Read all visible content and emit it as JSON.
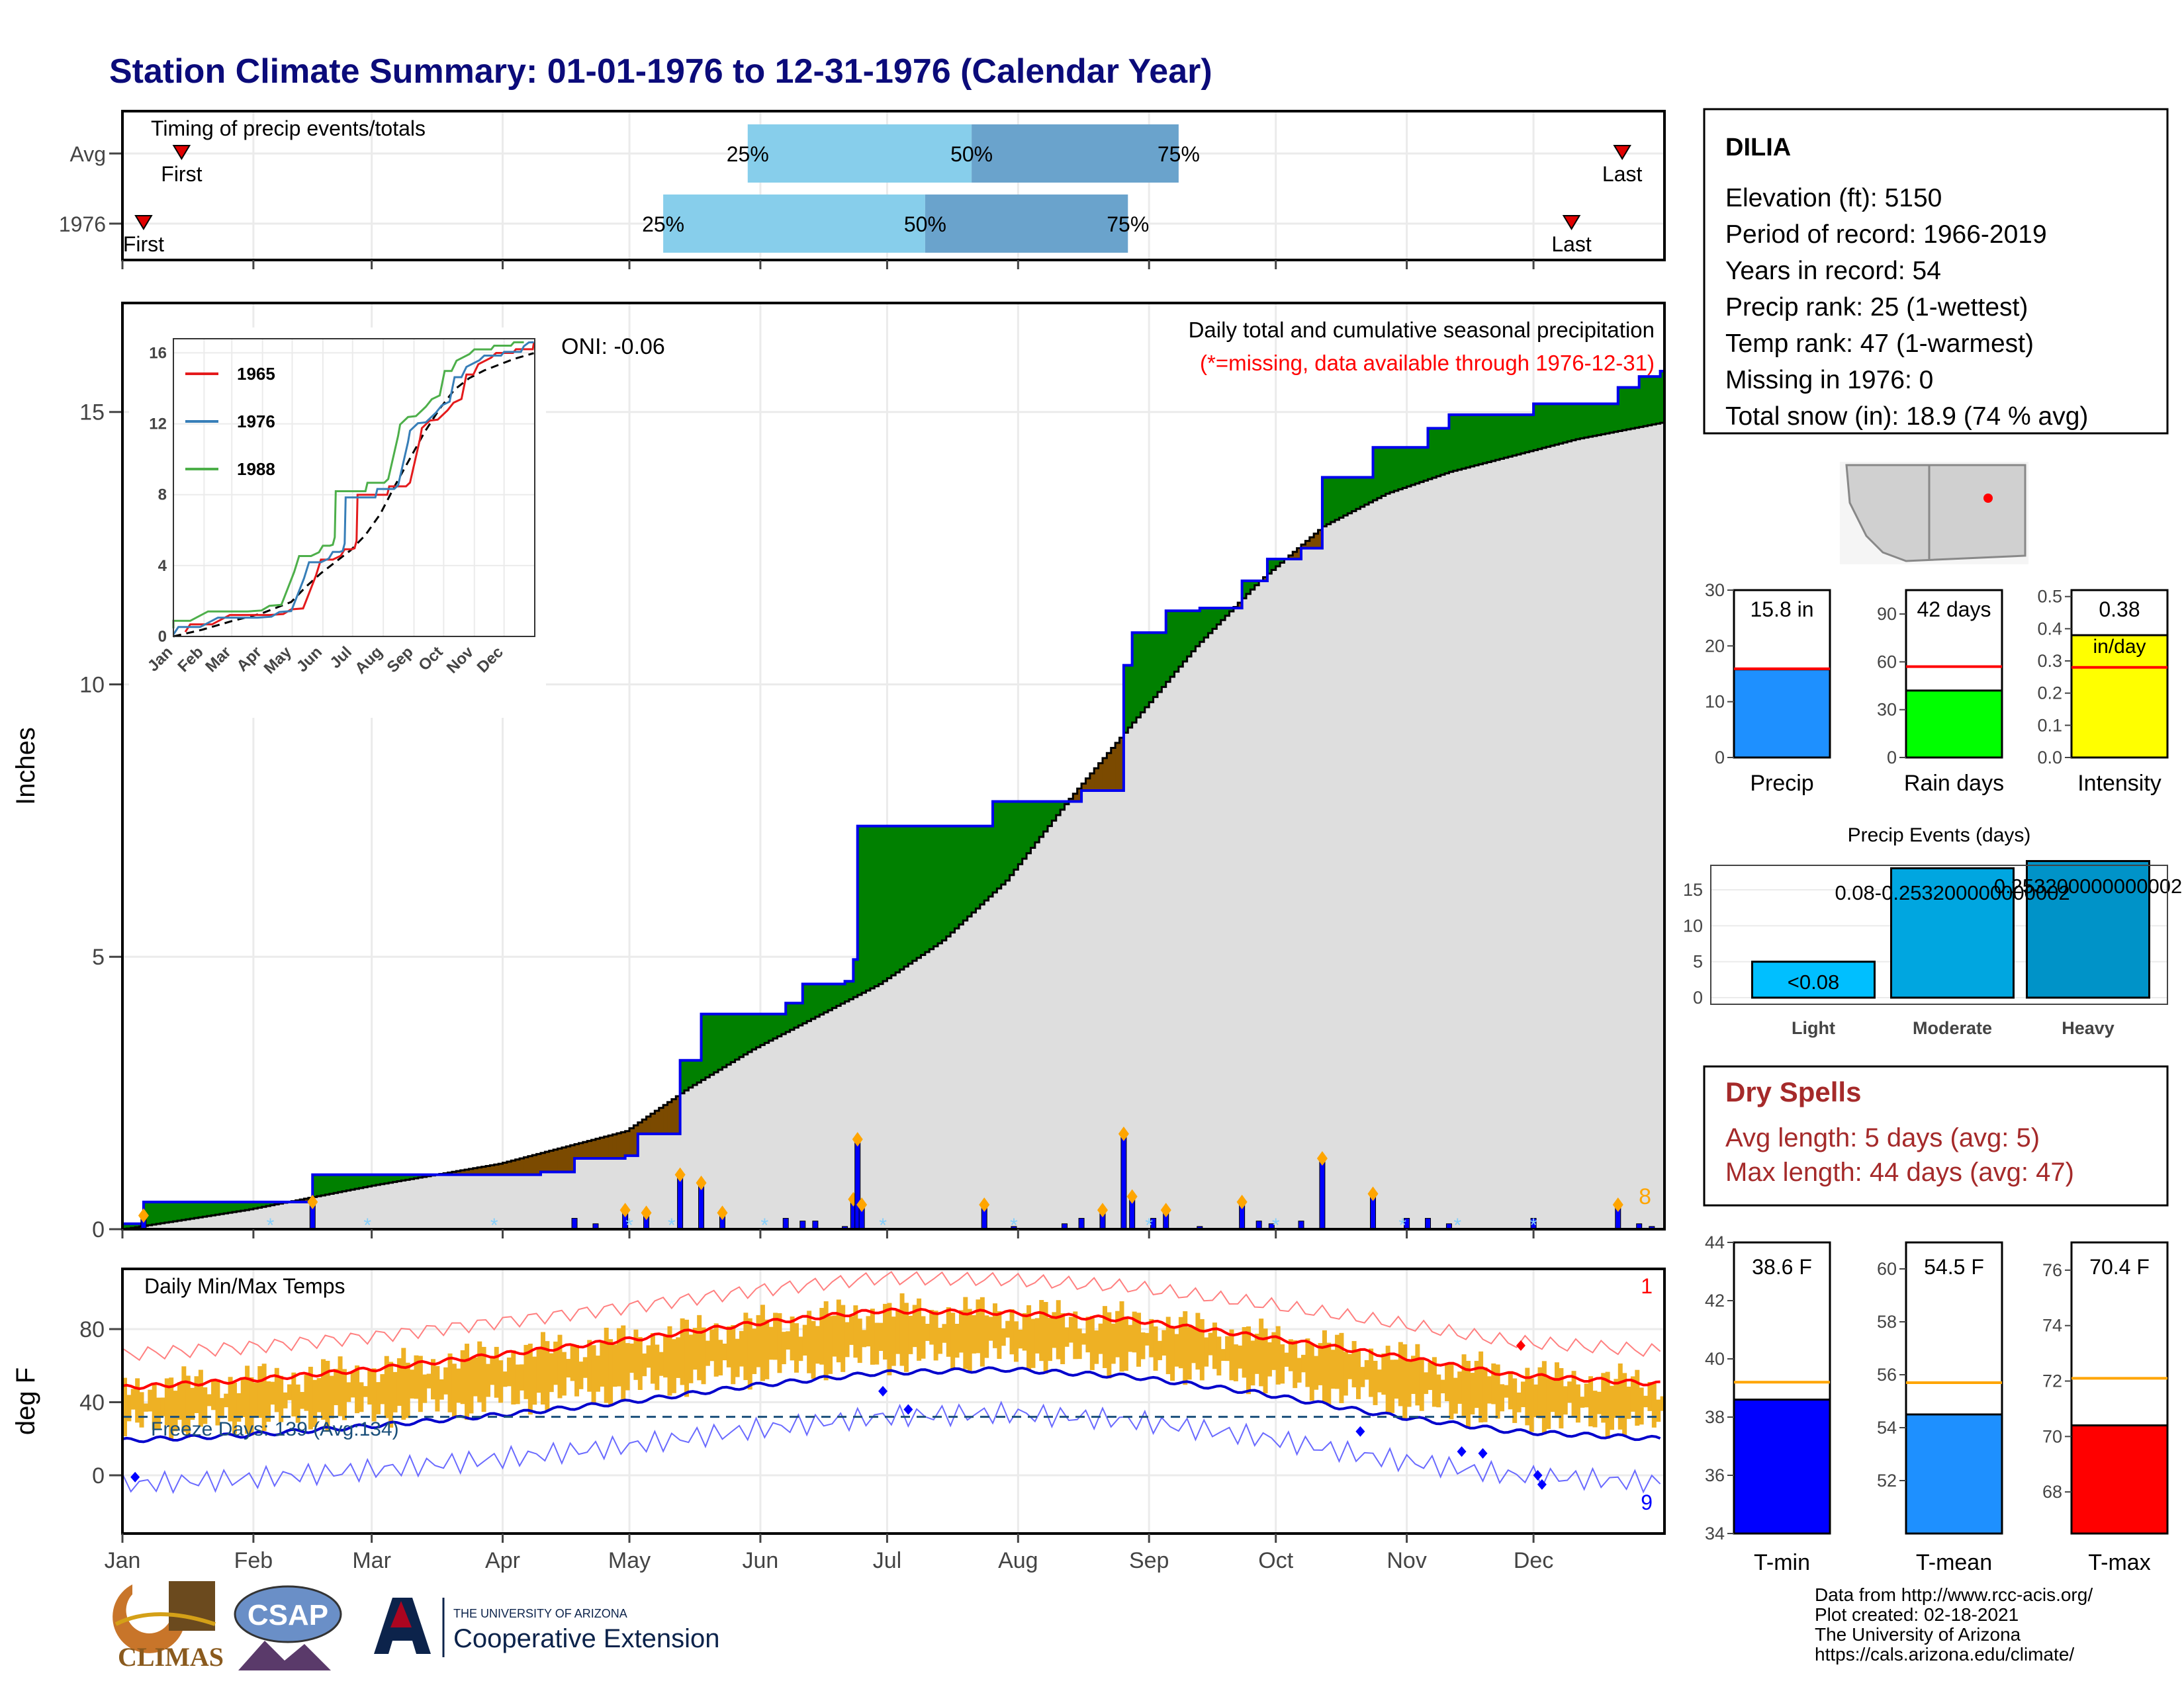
{
  "page_title": "Station Climate Summary: 01-01-1976 to 12-31-1976 (Calendar Year)",
  "colors": {
    "title": "#0b0b7a",
    "green_fill": "#008000",
    "brown_fill": "#7b4a00",
    "gray_fill": "#dedede",
    "blue": "#0000ff",
    "orange_bar": "#eeb124",
    "red_line": "#ff0000",
    "dry_spell_text": "#a52a2a"
  },
  "timing": {
    "title": "Timing of precip events/totals",
    "rows": [
      {
        "label": "Avg",
        "first_day": 15,
        "p25_day": 149,
        "p50_day": 202,
        "p75_day": 251,
        "last_day": 356,
        "first_text": "First",
        "p25_text": "25%",
        "p50_text": "50%",
        "p75_text": "75%",
        "last_text": "Last"
      },
      {
        "label": "1976",
        "first_day": 6,
        "p25_day": 129,
        "p50_day": 191,
        "p75_day": 239,
        "last_day": 344,
        "first_text": "First",
        "p25_text": "25%",
        "p50_text": "50%",
        "p75_text": "75%",
        "last_text": "Last"
      }
    ]
  },
  "months": [
    "Jan",
    "Feb",
    "Mar",
    "Apr",
    "May",
    "Jun",
    "Jul",
    "Aug",
    "Sep",
    "Oct",
    "Nov",
    "Dec"
  ],
  "precip_panel": {
    "ylabel": "Inches",
    "yticks": [
      0,
      5,
      10,
      15
    ],
    "ylim": [
      0,
      17
    ],
    "oni": "ONI: -0.06",
    "header1": "Daily total and cumulative seasonal precipitation",
    "header2": "(*=missing, data available through 1976-12-31)",
    "corner_count": "8"
  },
  "inset": {
    "yticks": [
      0,
      4,
      8,
      12,
      16
    ],
    "months": [
      "Jan",
      "Feb",
      "Mar",
      "Apr",
      "May",
      "Jun",
      "Jul",
      "Aug",
      "Sep",
      "Oct",
      "Nov",
      "Dec"
    ],
    "legend": [
      {
        "name": "1965",
        "color": "#e41a1c"
      },
      {
        "name": "1976",
        "color": "#377eb8"
      },
      {
        "name": "1988",
        "color": "#4daf4a"
      }
    ]
  },
  "temp_panel": {
    "ylabel": "deg F",
    "title": "Daily Min/Max Temps",
    "yticks": [
      0,
      40,
      80
    ],
    "freeze_text": "Freeze Days: 139 (Avg:134)",
    "corner_top": "1",
    "corner_bottom": "9"
  },
  "station": {
    "name": "DILIA",
    "lines": [
      "Elevation (ft): 5150",
      "Period of record: 1966-2019",
      "Years in record: 54",
      "Precip rank: 25 (1-wettest)",
      "Temp rank: 47 (1-warmest)",
      "Missing in 1976: 0",
      "Total snow (in): 18.9 (74 % avg)"
    ]
  },
  "summary_bars": [
    {
      "label": "Precip",
      "value": 15.8,
      "text": "15.8 in",
      "avg": 15.9,
      "ymax": 30,
      "ticks": [
        0,
        10,
        20,
        30
      ],
      "color": "#1e90ff"
    },
    {
      "label": "Rain days",
      "value": 42,
      "text": "42 days",
      "avg": 57,
      "ymax": 105,
      "ticks": [
        0,
        30,
        60,
        90
      ],
      "color": "#00ff00"
    },
    {
      "label": "Intensity",
      "value": 0.38,
      "text": "0.38",
      "text2": "in/day",
      "avg": 0.28,
      "ymax": 0.52,
      "ticks": [
        0.0,
        0.1,
        0.2,
        0.3,
        0.4,
        0.5
      ],
      "color": "#ffff00"
    }
  ],
  "precip_events": {
    "title": "Precip Events (days)",
    "categories": [
      "Light",
      "Moderate",
      "Heavy"
    ],
    "values": [
      5,
      18,
      19
    ],
    "bar_labels": [
      "<0.08",
      "0.08-0.253200000000002",
      "0.253200000000002"
    ],
    "yticks": [
      0,
      5,
      10,
      15
    ]
  },
  "dry_spells": {
    "title": "Dry Spells",
    "avg_line": "Avg length: 5 days (avg: 5)",
    "max_line": "Max length: 44 days (avg: 47)"
  },
  "temp_bars": [
    {
      "label": "T-min",
      "value": 38.6,
      "text": "38.6 F",
      "avg": 39.2,
      "ymin": 34,
      "ymax": 44,
      "ticks": [
        34,
        36,
        38,
        40,
        42,
        44
      ],
      "color": "#0000ff"
    },
    {
      "label": "T-mean",
      "value": 54.5,
      "text": "54.5 F",
      "avg": 55.7,
      "ymin": 50,
      "ymax": 61,
      "ticks": [
        52,
        54,
        56,
        58,
        60
      ],
      "color": "#1e90ff"
    },
    {
      "label": "T-max",
      "value": 70.4,
      "text": "70.4 F",
      "avg": 72.1,
      "ymin": 66.5,
      "ymax": 77,
      "ticks": [
        68,
        70,
        72,
        74,
        76
      ],
      "color": "#ff0000"
    }
  ],
  "footer": {
    "lines": [
      "Data from http://www.rcc-acis.org/",
      "Plot created: 02-18-2021",
      "The University of Arizona",
      "https://cals.arizona.edu/climate/"
    ],
    "climas": "CLIMAS",
    "csap": "CSAP",
    "ua_small": "THE UNIVERSITY OF ARIZONA",
    "ua_big": "Cooperative Extension"
  },
  "chart_data": [
    {
      "type": "area",
      "title": "Daily total and cumulative seasonal precipitation",
      "ylabel": "Inches",
      "ylim": [
        0,
        17
      ],
      "cumulative_1976_steps": [
        [
          1,
          0.1
        ],
        [
          6,
          0.5
        ],
        [
          28,
          0.5
        ],
        [
          46,
          1.0
        ],
        [
          86,
          1.0
        ],
        [
          100,
          1.05
        ],
        [
          108,
          1.3
        ],
        [
          120,
          1.35
        ],
        [
          123,
          1.75
        ],
        [
          133,
          3.1
        ],
        [
          138,
          3.95
        ],
        [
          150,
          3.95
        ],
        [
          158,
          4.15
        ],
        [
          162,
          4.5
        ],
        [
          169,
          4.5
        ],
        [
          172,
          4.55
        ],
        [
          174,
          4.95
        ],
        [
          175,
          7.4
        ],
        [
          205,
          7.4
        ],
        [
          207,
          7.85
        ],
        [
          224,
          7.85
        ],
        [
          228,
          8.05
        ],
        [
          238,
          10.35
        ],
        [
          240,
          10.95
        ],
        [
          248,
          11.35
        ],
        [
          256,
          11.4
        ],
        [
          266,
          11.9
        ],
        [
          272,
          12.3
        ],
        [
          280,
          12.5
        ],
        [
          285,
          13.8
        ],
        [
          292,
          13.8
        ],
        [
          297,
          14.35
        ],
        [
          310,
          14.7
        ],
        [
          315,
          14.95
        ],
        [
          332,
          14.95
        ],
        [
          335,
          15.15
        ],
        [
          352,
          15.15
        ],
        [
          355,
          15.45
        ],
        [
          360,
          15.65
        ],
        [
          365,
          15.75
        ]
      ],
      "average_cumulative": [
        [
          1,
          0.0
        ],
        [
          30,
          0.35
        ],
        [
          60,
          0.8
        ],
        [
          90,
          1.2
        ],
        [
          120,
          1.8
        ],
        [
          135,
          2.6
        ],
        [
          150,
          3.3
        ],
        [
          165,
          3.9
        ],
        [
          180,
          4.5
        ],
        [
          195,
          5.3
        ],
        [
          210,
          6.4
        ],
        [
          225,
          7.9
        ],
        [
          240,
          9.3
        ],
        [
          255,
          10.7
        ],
        [
          270,
          11.9
        ],
        [
          285,
          12.9
        ],
        [
          300,
          13.5
        ],
        [
          315,
          13.9
        ],
        [
          330,
          14.2
        ],
        [
          345,
          14.5
        ],
        [
          365,
          14.8
        ]
      ],
      "daily_precip": [
        [
          6,
          0.25
        ],
        [
          46,
          0.5
        ],
        [
          108,
          0.2
        ],
        [
          113,
          0.1
        ],
        [
          120,
          0.35
        ],
        [
          125,
          0.3
        ],
        [
          133,
          1.0
        ],
        [
          138,
          0.85
        ],
        [
          143,
          0.3
        ],
        [
          158,
          0.2
        ],
        [
          162,
          0.15
        ],
        [
          165,
          0.15
        ],
        [
          172,
          0.05
        ],
        [
          174,
          0.55
        ],
        [
          175,
          1.65
        ],
        [
          176,
          0.45
        ],
        [
          205,
          0.45
        ],
        [
          212,
          0.05
        ],
        [
          224,
          0.1
        ],
        [
          228,
          0.2
        ],
        [
          233,
          0.35
        ],
        [
          238,
          1.75
        ],
        [
          240,
          0.6
        ],
        [
          245,
          0.2
        ],
        [
          248,
          0.35
        ],
        [
          256,
          0.05
        ],
        [
          266,
          0.5
        ],
        [
          270,
          0.15
        ],
        [
          273,
          0.1
        ],
        [
          280,
          0.15
        ],
        [
          285,
          1.3
        ],
        [
          297,
          0.65
        ],
        [
          305,
          0.2
        ],
        [
          310,
          0.2
        ],
        [
          315,
          0.1
        ],
        [
          335,
          0.2
        ],
        [
          355,
          0.45
        ],
        [
          360,
          0.1
        ],
        [
          363,
          0.05
        ]
      ]
    },
    {
      "type": "line",
      "title": "Daily Min/Max Temps",
      "ylabel": "deg F",
      "avg_max": [
        [
          1,
          48
        ],
        [
          30,
          52
        ],
        [
          60,
          58
        ],
        [
          90,
          66
        ],
        [
          120,
          74
        ],
        [
          150,
          83
        ],
        [
          180,
          90
        ],
        [
          210,
          89
        ],
        [
          240,
          85
        ],
        [
          270,
          76
        ],
        [
          300,
          66
        ],
        [
          330,
          55
        ],
        [
          365,
          50
        ]
      ],
      "avg_min": [
        [
          1,
          19
        ],
        [
          30,
          22
        ],
        [
          60,
          27
        ],
        [
          90,
          33
        ],
        [
          120,
          40
        ],
        [
          150,
          49
        ],
        [
          180,
          56
        ],
        [
          210,
          58
        ],
        [
          240,
          54
        ],
        [
          270,
          45
        ],
        [
          300,
          33
        ],
        [
          330,
          24
        ],
        [
          365,
          20
        ]
      ],
      "freeze_threshold": 32
    }
  ]
}
